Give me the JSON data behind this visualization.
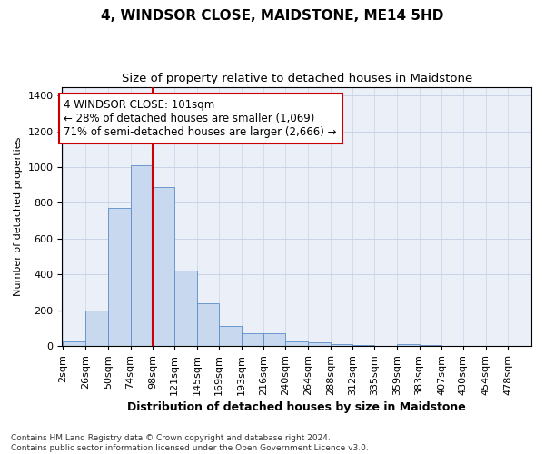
{
  "title": "4, WINDSOR CLOSE, MAIDSTONE, ME14 5HD",
  "subtitle": "Size of property relative to detached houses in Maidstone",
  "xlabel": "Distribution of detached houses by size in Maidstone",
  "ylabel": "Number of detached properties",
  "bin_edges": [
    2,
    26,
    50,
    74,
    98,
    121,
    145,
    169,
    193,
    216,
    240,
    264,
    288,
    312,
    335,
    359,
    383,
    407,
    430,
    454,
    478
  ],
  "bin_labels": [
    "2sqm",
    "26sqm",
    "50sqm",
    "74sqm",
    "98sqm",
    "121sqm",
    "145sqm",
    "169sqm",
    "193sqm",
    "216sqm",
    "240sqm",
    "264sqm",
    "288sqm",
    "312sqm",
    "335sqm",
    "359sqm",
    "383sqm",
    "407sqm",
    "430sqm",
    "454sqm",
    "478sqm"
  ],
  "values": [
    25,
    200,
    770,
    1010,
    890,
    420,
    240,
    110,
    70,
    70,
    25,
    20,
    10,
    5,
    0,
    10,
    5,
    0,
    0,
    0
  ],
  "bar_color": "#c8d9ef",
  "bar_edge_color": "#5b8cc8",
  "vline_x": 98,
  "vline_color": "#cc0000",
  "annotation_text": "4 WINDSOR CLOSE: 101sqm\n← 28% of detached houses are smaller (1,069)\n71% of semi-detached houses are larger (2,666) →",
  "annotation_box_color": "#cc0000",
  "ylim": [
    0,
    1450
  ],
  "yticks": [
    0,
    200,
    400,
    600,
    800,
    1000,
    1200,
    1400
  ],
  "grid_color": "#c8d4e8",
  "background_color": "#eaeff8",
  "footnote": "Contains HM Land Registry data © Crown copyright and database right 2024.\nContains public sector information licensed under the Open Government Licence v3.0.",
  "title_fontsize": 11,
  "subtitle_fontsize": 9.5,
  "xlabel_fontsize": 9,
  "ylabel_fontsize": 8,
  "tick_fontsize": 8,
  "xtick_fontsize": 8,
  "annotation_fontsize": 8.5,
  "footnote_fontsize": 6.5
}
